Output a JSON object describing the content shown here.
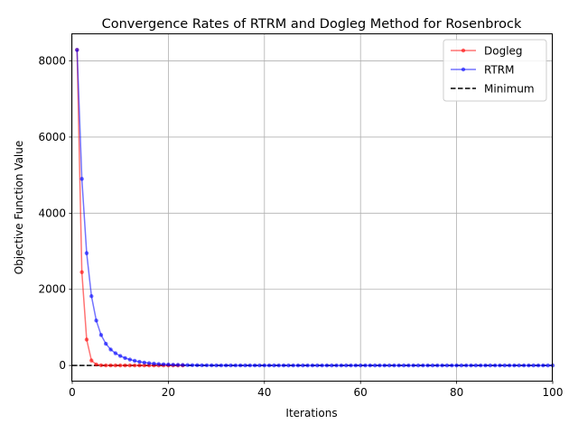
{
  "chart_data": {
    "type": "line",
    "title": "Convergence Rates of RTRM and Dogleg Method for Rosenbrock",
    "xlabel": "Iterations",
    "ylabel": "Objective Function Value",
    "xlim": [
      0,
      100
    ],
    "ylim": [
      -400,
      8700
    ],
    "xticks": [
      0,
      20,
      40,
      60,
      80,
      100
    ],
    "yticks": [
      0,
      2000,
      4000,
      6000,
      8000
    ],
    "grid": true,
    "legend_position": "top-right",
    "series": [
      {
        "name": "Dogleg",
        "color": "#ff0000",
        "x": [
          1,
          2,
          3,
          4,
          5,
          6,
          7,
          8,
          9,
          10,
          11,
          12,
          13,
          14,
          15,
          16,
          17,
          18,
          19,
          20,
          21,
          22,
          23
        ],
        "values": [
          8290,
          2450,
          680,
          130,
          25,
          5,
          2,
          1,
          0,
          0,
          0,
          0,
          0,
          0,
          0,
          0,
          0,
          0,
          0,
          0,
          0,
          0,
          0
        ]
      },
      {
        "name": "RTRM",
        "color": "#0000ff",
        "x": [
          1,
          2,
          3,
          4,
          5,
          6,
          7,
          8,
          9,
          10,
          11,
          12,
          13,
          14,
          15,
          16,
          17,
          18,
          19,
          20,
          21,
          22,
          23,
          24,
          25,
          26,
          27,
          28,
          29,
          30,
          31,
          32,
          33,
          34,
          35,
          36,
          37,
          38,
          39,
          40,
          41,
          42,
          43,
          44,
          45,
          46,
          47,
          48,
          49,
          50,
          51,
          52,
          53,
          54,
          55,
          56,
          57,
          58,
          59,
          60,
          61,
          62,
          63,
          64,
          65,
          66,
          67,
          68,
          69,
          70,
          71,
          72,
          73,
          74,
          75,
          76,
          77,
          78,
          79,
          80,
          81,
          82,
          83,
          84,
          85,
          86,
          87,
          88,
          89,
          90,
          91,
          92,
          93,
          94,
          95,
          96,
          97,
          98,
          99,
          100
        ],
        "values": [
          8290,
          4900,
          2950,
          1820,
          1180,
          800,
          570,
          420,
          320,
          250,
          195,
          155,
          122,
          96,
          76,
          60,
          48,
          38,
          30,
          24,
          19,
          15,
          12,
          10,
          8,
          6,
          5,
          4,
          3,
          2.5,
          2,
          1.6,
          1.3,
          1,
          0.8,
          0.6,
          0.5,
          0.4,
          0.3,
          0.25,
          0.2,
          0.15,
          0.1,
          0.08,
          0.06,
          0.05,
          0.04,
          0.03,
          0.02,
          0.02,
          0.01,
          0.01,
          0.01,
          0,
          0,
          0,
          0,
          0,
          0,
          0,
          0,
          0,
          0,
          0,
          0,
          0,
          0,
          0,
          0,
          0,
          0,
          0,
          0,
          0,
          0,
          0,
          0,
          0,
          0,
          0,
          0,
          0,
          0,
          0,
          0,
          0,
          0,
          0,
          0,
          0,
          0,
          0,
          0,
          0,
          0,
          0,
          0,
          0,
          0,
          0
        ]
      }
    ],
    "reference_line": {
      "name": "Minimum",
      "y": 0,
      "color": "#000000",
      "style": "dashed"
    }
  }
}
